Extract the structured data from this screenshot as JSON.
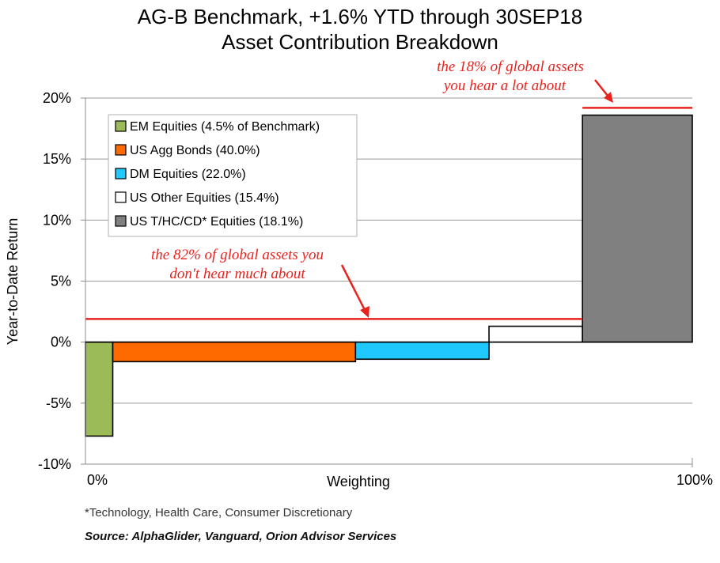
{
  "chart_data": {
    "type": "bar",
    "variable_width": true,
    "title_lines": [
      "AG-B Benchmark, +1.6% YTD through 30SEP18",
      "Asset Contribution Breakdown"
    ],
    "xlabel": "Weighting",
    "ylabel": "Year-to-Date Return",
    "x_tick_labels": [
      "0%",
      "100%"
    ],
    "ylim": [
      -10,
      20
    ],
    "y_ticks": [
      -10,
      -5,
      0,
      5,
      10,
      15,
      20
    ],
    "y_tick_labels": [
      "-10%",
      "-5%",
      "0%",
      "5%",
      "10%",
      "15%",
      "20%"
    ],
    "grid": true,
    "legend_position": "top-left",
    "series": [
      {
        "name": "EM Equities (4.5% of Benchmark)",
        "weight": 4.5,
        "value": -7.7,
        "color": "#9bbb59"
      },
      {
        "name": "US Agg Bonds (40.0%)",
        "weight": 40.0,
        "value": -1.6,
        "color": "#ff6a00"
      },
      {
        "name": "DM Equities (22.0%)",
        "weight": 22.0,
        "value": -1.4,
        "color": "#1fc8ff"
      },
      {
        "name": "US Other Equities (15.4%)",
        "weight": 15.4,
        "value": 1.3,
        "color": "#ffffff"
      },
      {
        "name": "US T/HC/CD* Equities (18.1%)",
        "weight": 18.1,
        "value": 18.6,
        "color": "#808080"
      }
    ],
    "reference_lines": [
      {
        "from_weight": 0,
        "to_weight": 81.9,
        "value": 1.9,
        "color": "#e8231f"
      },
      {
        "from_weight": 81.9,
        "to_weight": 100,
        "value": 19.2,
        "color": "#e8231f"
      }
    ],
    "annotations": [
      {
        "lines": [
          "the 82% of global assets you",
          "don't hear much about"
        ],
        "color": "#e8231f"
      },
      {
        "lines": [
          "the 18% of global assets",
          "you hear a lot about"
        ],
        "color": "#e8231f"
      }
    ]
  },
  "footnote": "*Technology, Health Care, Consumer Discretionary",
  "source": "Source: AlphaGlider, Vanguard, Orion Advisor Services"
}
